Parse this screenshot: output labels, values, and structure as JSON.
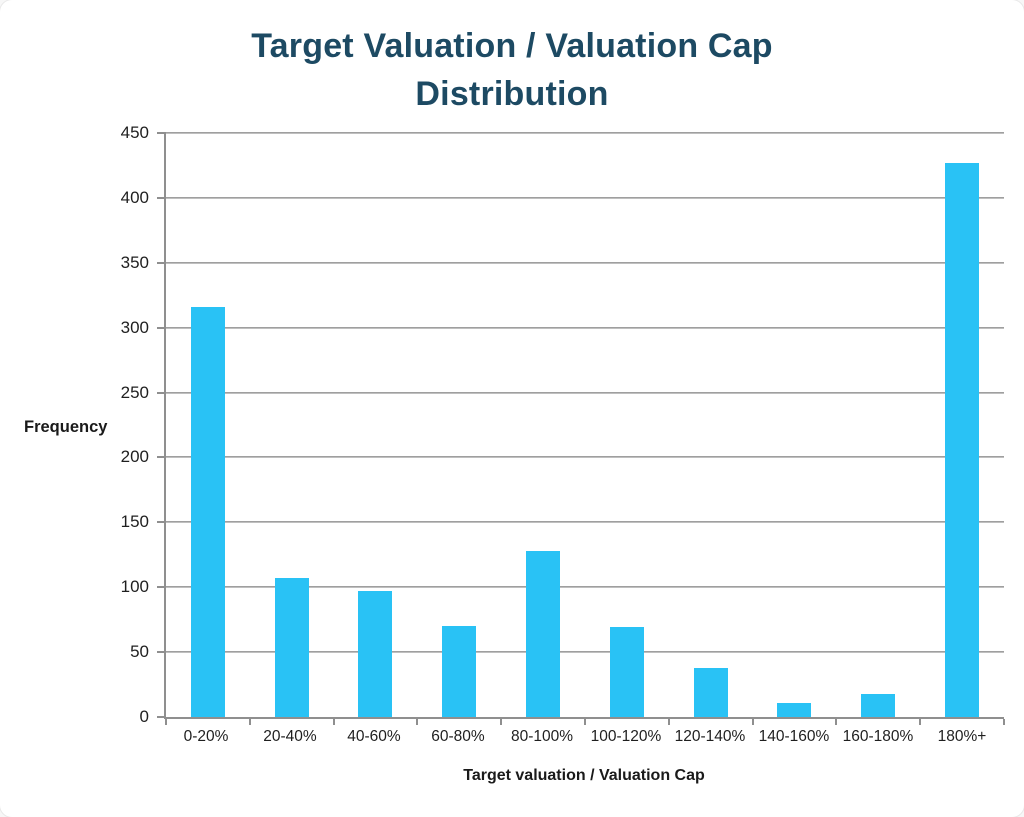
{
  "chart_data": {
    "type": "bar",
    "title": "Target Valuation / Valuation Cap Distribution",
    "xlabel": "Target valuation / Valuation Cap",
    "ylabel": "Frequency",
    "categories": [
      "0-20%",
      "20-40%",
      "40-60%",
      "60-80%",
      "80-100%",
      "100-120%",
      "120-140%",
      "140-160%",
      "160-180%",
      "180%+"
    ],
    "values": [
      316,
      107,
      97,
      70,
      128,
      69,
      38,
      11,
      18,
      427
    ],
    "ylim": [
      0,
      450
    ],
    "yticks": [
      0,
      50,
      100,
      150,
      200,
      250,
      300,
      350,
      400,
      450
    ],
    "grid": "horizontal",
    "legend": "none",
    "colors": {
      "bar": "#29c2f5",
      "title": "#1d4a63",
      "axis": "#8f8f8f",
      "text": "#1f1f1f"
    }
  }
}
